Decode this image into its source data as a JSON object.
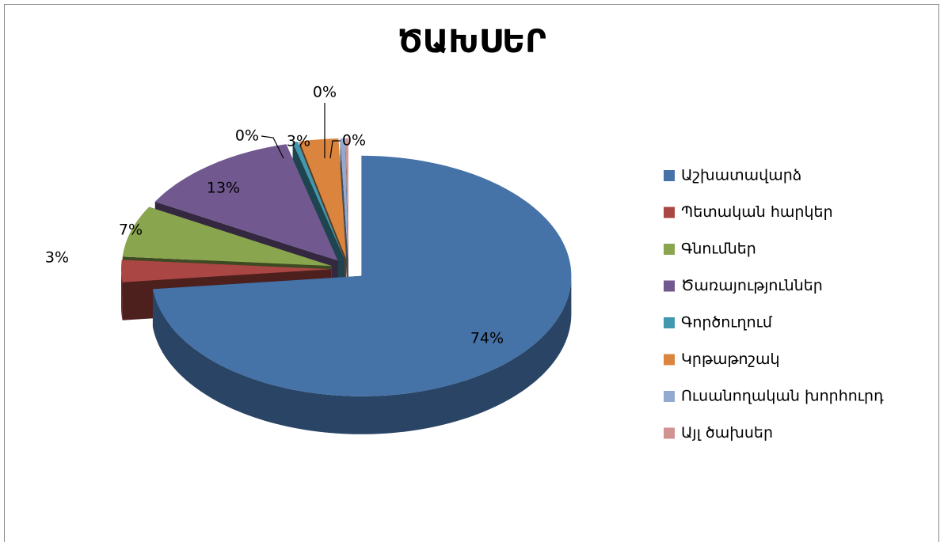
{
  "chart_data": {
    "type": "pie",
    "title": "ԾԱԽՍԵՐ",
    "categories": [
      "Աշխատավարձ",
      "Պետական հարկեր",
      "Գնումներ",
      "Ծառայություններ",
      "Գործուղում",
      "Կրթաթոշակ",
      "Ուսանողական խորհուրդ",
      "Այլ ծախսեր"
    ],
    "values": [
      74,
      3,
      7,
      13,
      0.4,
      3,
      0.4,
      0.2
    ],
    "value_labels": [
      "74%",
      "3%",
      "7%",
      "13%",
      "0%",
      "3%",
      "0%",
      "0%"
    ],
    "colors": [
      "#4572a7",
      "#aa4643",
      "#89a54e",
      "#71588f",
      "#4198af",
      "#db843d",
      "#93a9cf",
      "#d19392"
    ],
    "legend": "right"
  }
}
